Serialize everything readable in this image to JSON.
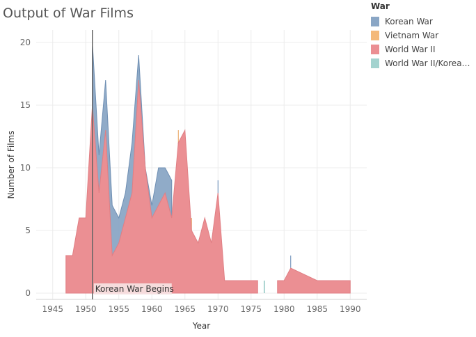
{
  "title": "Output of War Films",
  "legend": {
    "title": "War",
    "items": [
      {
        "label": "Korean War",
        "color": "#8aa6c5"
      },
      {
        "label": "Vietnam War",
        "color": "#f4b97a"
      },
      {
        "label": "World War II",
        "color": "#eb8f93"
      },
      {
        "label": "World War II/Korean ..",
        "color": "#a3d3cf"
      }
    ]
  },
  "chart_data": {
    "type": "area",
    "title": "Output of War Films",
    "xlabel": "Year",
    "ylabel": "Number of Films",
    "xlim": [
      1942.5,
      1992.5
    ],
    "ylim": [
      -0.5,
      21
    ],
    "x_ticks": [
      1945,
      1950,
      1955,
      1960,
      1965,
      1970,
      1975,
      1980,
      1985,
      1990
    ],
    "y_ticks": [
      0,
      5,
      10,
      15,
      20
    ],
    "grid": true,
    "legend_position": "top-right",
    "series": [
      {
        "name": "Korean War",
        "color": "#8aa6c5",
        "points": [
          [
            1951,
            20
          ],
          [
            1952,
            11
          ],
          [
            1953,
            17
          ],
          [
            1954,
            7
          ],
          [
            1955,
            6
          ],
          [
            1956,
            8
          ],
          [
            1957,
            12
          ],
          [
            1958,
            19
          ],
          [
            1959,
            10
          ],
          [
            1960,
            7
          ],
          [
            1961,
            10
          ],
          [
            1962,
            10
          ],
          [
            1963,
            9
          ],
          [
            1964,
            12
          ],
          [
            1970,
            9
          ],
          [
            1981,
            3
          ]
        ]
      },
      {
        "name": "World War II",
        "color": "#eb8f93",
        "points": [
          [
            1947,
            3
          ],
          [
            1948,
            3
          ],
          [
            1949,
            6
          ],
          [
            1950,
            6
          ],
          [
            1951,
            15
          ],
          [
            1952,
            8
          ],
          [
            1953,
            13
          ],
          [
            1954,
            3
          ],
          [
            1955,
            4
          ],
          [
            1956,
            6
          ],
          [
            1957,
            8
          ],
          [
            1958,
            17
          ],
          [
            1959,
            10
          ],
          [
            1960,
            6
          ],
          [
            1961,
            7
          ],
          [
            1962,
            8
          ],
          [
            1963,
            6
          ],
          [
            1964,
            12
          ],
          [
            1965,
            13
          ],
          [
            1966,
            5
          ],
          [
            1967,
            4
          ],
          [
            1968,
            6
          ],
          [
            1969,
            4
          ],
          [
            1970,
            8
          ],
          [
            1971,
            1
          ],
          [
            1976,
            1
          ],
          [
            1979,
            1
          ],
          [
            1980,
            1
          ],
          [
            1981,
            2
          ],
          [
            1985,
            1
          ],
          [
            1990,
            1
          ]
        ]
      },
      {
        "name": "Vietnam War",
        "color": "#f4b97a",
        "points": [
          [
            1964,
            13
          ],
          [
            1966,
            6
          ]
        ]
      },
      {
        "name": "World War II/Korean ..",
        "color": "#a3d3cf",
        "points": [
          [
            1951,
            1
          ],
          [
            1977,
            1
          ]
        ]
      }
    ],
    "reference_line": {
      "x": 1951,
      "label": "Korean War Begins"
    }
  }
}
